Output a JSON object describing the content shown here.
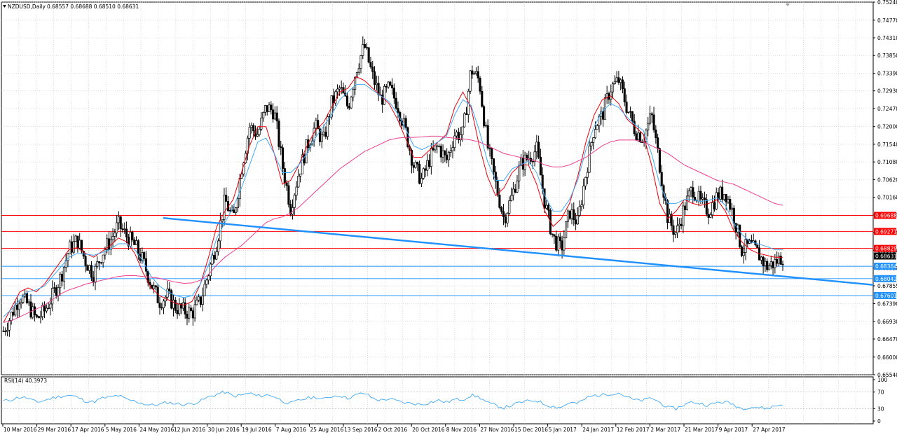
{
  "chart_data": [
    {
      "type": "candlestick",
      "title": "NZDUSD,Daily",
      "ohlc_text": "0.68557 0.68688 0.68510 0.68631",
      "yticks": [
        "0.75240",
        "0.74770",
        "0.74310",
        "0.73850",
        "0.73390",
        "0.72930",
        "0.72470",
        "0.72000",
        "0.71540",
        "0.71080",
        "0.70620",
        "0.70160",
        "0.69700",
        "0.69240",
        "0.68780",
        "0.68320",
        "0.67855",
        "0.67390",
        "0.66930",
        "0.66470",
        "0.66000",
        "0.65540"
      ],
      "ylim": [
        0.6554,
        0.7524
      ],
      "xticks": [
        "10 Mar 2016",
        "29 Mar 2016",
        "17 Apr 2016",
        "5 May 2016",
        "24 May 2016",
        "12 Jun 2016",
        "30 Jun 2016",
        "19 Jul 2016",
        "7 Aug 2016",
        "25 Aug 2016",
        "13 Sep 2016",
        "2 Oct 2016",
        "20 Oct 2016",
        "8 Nov 2016",
        "27 Nov 2016",
        "15 Dec 2016",
        "5 Jan 2017",
        "24 Jan 2017",
        "12 Feb 2017",
        "2 Mar 2017",
        "21 Mar 2017",
        "9 Apr 2017",
        "27 Apr 2017"
      ],
      "close_path": [
        0.6668,
        0.6712,
        0.676,
        0.6735,
        0.6698,
        0.672,
        0.676,
        0.681,
        0.688,
        0.6905,
        0.685,
        0.6815,
        0.687,
        0.6902,
        0.6945,
        0.6915,
        0.689,
        0.685,
        0.679,
        0.6745,
        0.676,
        0.673,
        0.672,
        0.6715,
        0.6745,
        0.682,
        0.69,
        0.701,
        0.6955,
        0.709,
        0.72,
        0.718,
        0.725,
        0.724,
        0.71,
        0.699,
        0.708,
        0.715,
        0.72,
        0.716,
        0.726,
        0.73,
        0.725,
        0.735,
        0.741,
        0.733,
        0.727,
        0.73,
        0.726,
        0.719,
        0.71,
        0.706,
        0.712,
        0.715,
        0.711,
        0.718,
        0.718,
        0.735,
        0.732,
        0.715,
        0.705,
        0.696,
        0.702,
        0.71,
        0.712,
        0.714,
        0.7,
        0.691,
        0.688,
        0.698,
        0.695,
        0.708,
        0.72,
        0.723,
        0.73,
        0.732,
        0.725,
        0.719,
        0.717,
        0.723,
        0.71,
        0.696,
        0.692,
        0.699,
        0.704,
        0.7,
        0.698,
        0.702,
        0.703,
        0.697,
        0.688,
        0.689,
        0.687,
        0.6835,
        0.6845,
        0.6863
      ],
      "series": [
        {
          "name": "",
          "color": "#e8000b",
          "values": [
            0.669,
            0.673,
            0.677,
            0.678,
            0.677,
            0.679,
            0.682,
            0.685,
            0.688,
            0.6885,
            0.687,
            0.686,
            0.6875,
            0.689,
            0.691,
            0.69,
            0.687,
            0.682,
            0.678,
            0.676,
            0.675,
            0.674,
            0.6735,
            0.6745,
            0.679,
            0.686,
            0.694,
            0.698,
            0.701,
            0.708,
            0.715,
            0.72,
            0.72,
            0.713,
            0.705,
            0.706,
            0.71,
            0.715,
            0.719,
            0.721,
            0.725,
            0.729,
            0.73,
            0.733,
            0.732,
            0.73,
            0.728,
            0.726,
            0.722,
            0.717,
            0.712,
            0.712,
            0.714,
            0.716,
            0.718,
            0.725,
            0.729,
            0.725,
            0.715,
            0.707,
            0.702,
            0.704,
            0.708,
            0.71,
            0.71,
            0.705,
            0.698,
            0.694,
            0.696,
            0.7,
            0.707,
            0.716,
            0.723,
            0.727,
            0.728,
            0.726,
            0.722,
            0.72,
            0.718,
            0.71,
            0.7,
            0.696,
            0.698,
            0.701,
            0.7,
            0.6995,
            0.7,
            0.701,
            0.698,
            0.693,
            0.69,
            0.688,
            0.687,
            0.6865,
            0.686,
            0.686
          ]
        },
        {
          "name": "",
          "color": "#3fa8f4",
          "values": [
            0.6705,
            0.6725,
            0.675,
            0.677,
            0.6775,
            0.6785,
            0.681,
            0.6835,
            0.686,
            0.687,
            0.6868,
            0.6865,
            0.6872,
            0.688,
            0.6895,
            0.6895,
            0.688,
            0.685,
            0.681,
            0.6785,
            0.677,
            0.676,
            0.6755,
            0.676,
            0.679,
            0.684,
            0.691,
            0.695,
            0.699,
            0.704,
            0.71,
            0.716,
            0.717,
            0.713,
            0.708,
            0.708,
            0.71,
            0.713,
            0.717,
            0.72,
            0.723,
            0.727,
            0.729,
            0.731,
            0.731,
            0.7295,
            0.728,
            0.7265,
            0.7235,
            0.7195,
            0.715,
            0.714,
            0.715,
            0.716,
            0.7175,
            0.723,
            0.727,
            0.7255,
            0.719,
            0.711,
            0.706,
            0.706,
            0.709,
            0.71,
            0.711,
            0.708,
            0.702,
            0.698,
            0.698,
            0.701,
            0.706,
            0.714,
            0.72,
            0.724,
            0.726,
            0.725,
            0.7225,
            0.7205,
            0.719,
            0.713,
            0.705,
            0.7,
            0.7,
            0.701,
            0.701,
            0.7005,
            0.7008,
            0.7015,
            0.6995,
            0.695,
            0.692,
            0.69,
            0.6895,
            0.6888,
            0.688,
            0.688
          ]
        },
        {
          "name": "",
          "color": "#ee3f8f",
          "values": [
            0.669,
            0.6695,
            0.6705,
            0.6715,
            0.6725,
            0.6735,
            0.675,
            0.6765,
            0.6775,
            0.6782,
            0.679,
            0.6795,
            0.68,
            0.6805,
            0.681,
            0.6812,
            0.6812,
            0.681,
            0.6808,
            0.6805,
            0.68,
            0.6795,
            0.6792,
            0.6793,
            0.68,
            0.6815,
            0.684,
            0.686,
            0.6875,
            0.689,
            0.691,
            0.693,
            0.695,
            0.696,
            0.6965,
            0.6975,
            0.699,
            0.701,
            0.703,
            0.705,
            0.707,
            0.709,
            0.7105,
            0.712,
            0.7135,
            0.7145,
            0.7155,
            0.7165,
            0.717,
            0.7172,
            0.7172,
            0.7173,
            0.7175,
            0.7175,
            0.7172,
            0.717,
            0.7168,
            0.7165,
            0.716,
            0.715,
            0.714,
            0.713,
            0.7125,
            0.712,
            0.7115,
            0.711,
            0.71,
            0.7095,
            0.7095,
            0.71,
            0.711,
            0.712,
            0.7135,
            0.715,
            0.716,
            0.7165,
            0.7165,
            0.7165,
            0.716,
            0.715,
            0.714,
            0.713,
            0.7115,
            0.71,
            0.709,
            0.708,
            0.707,
            0.706,
            0.7055,
            0.705,
            0.704,
            0.703,
            0.702,
            0.701,
            0.7,
            0.6995
          ]
        }
      ],
      "hlines": [
        {
          "value": 0.69688,
          "label": "0.69688",
          "color": "#ff0000"
        },
        {
          "value": 0.69271,
          "label": "0.69271",
          "color": "#ff0000"
        },
        {
          "value": 0.68829,
          "label": "0.68829",
          "color": "#ff0000"
        },
        {
          "value": 0.68631,
          "label": "0.68631",
          "color": "#000000"
        },
        {
          "value": 0.68364,
          "label": "0.68364",
          "color": "#1e90ff"
        },
        {
          "value": 0.68042,
          "label": "0.68042",
          "color": "#1e90ff"
        },
        {
          "value": 0.67601,
          "label": "0.67601",
          "color": "#1e90ff"
        }
      ],
      "trendline": {
        "start": {
          "xi": 0.205,
          "y": 0.6962
        },
        "end": {
          "xi": 1.0,
          "y": 0.6788
        },
        "color": "#1e90ff"
      }
    },
    {
      "type": "line",
      "title": "RSI(14) 40.3973",
      "yticks": [
        "100",
        "70",
        "30",
        "0"
      ],
      "ylim": [
        0,
        100
      ],
      "series": [
        {
          "name": "RSI(14)",
          "color": "#3fa8f4",
          "values": [
            48,
            52,
            58,
            55,
            45,
            50,
            56,
            60,
            62,
            58,
            48,
            46,
            55,
            58,
            62,
            52,
            48,
            42,
            38,
            40,
            45,
            42,
            40,
            42,
            48,
            58,
            65,
            70,
            60,
            62,
            68,
            60,
            63,
            60,
            48,
            42,
            50,
            55,
            58,
            52,
            60,
            62,
            55,
            63,
            68,
            55,
            50,
            54,
            48,
            44,
            42,
            40,
            45,
            50,
            45,
            52,
            52,
            62,
            58,
            44,
            38,
            32,
            38,
            45,
            48,
            50,
            40,
            35,
            33,
            45,
            42,
            55,
            62,
            63,
            66,
            68,
            58,
            50,
            50,
            56,
            45,
            32,
            30,
            40,
            46,
            42,
            38,
            45,
            46,
            40,
            30,
            34,
            33,
            30,
            36,
            40
          ]
        }
      ],
      "hlines": [
        70,
        30
      ]
    }
  ]
}
